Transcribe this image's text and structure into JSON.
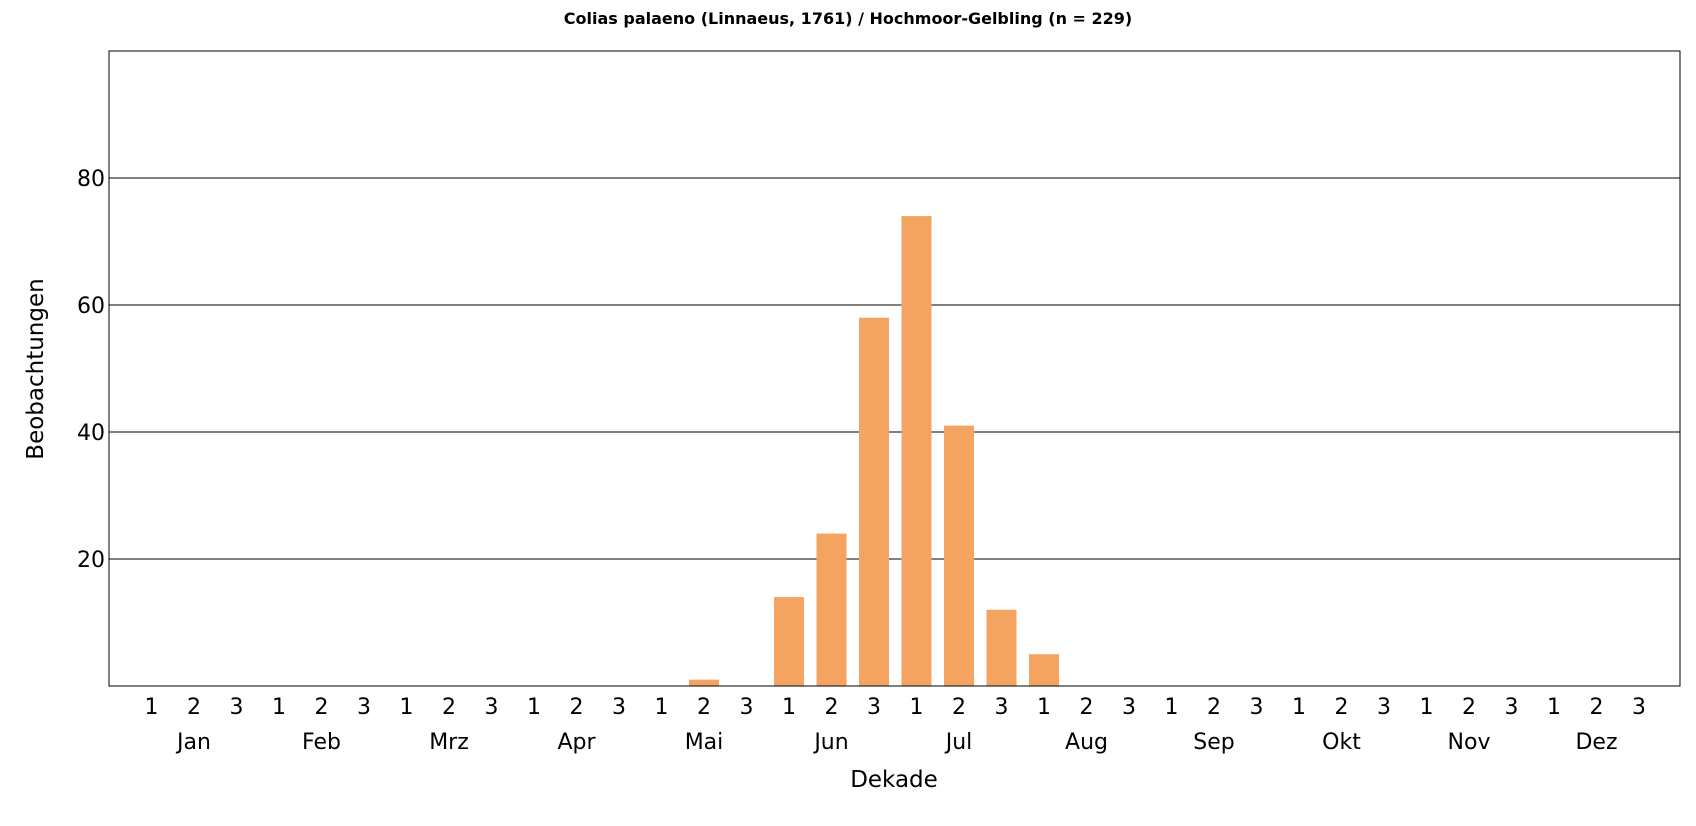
{
  "chart_data": {
    "type": "bar",
    "title": "Colias palaeno (Linnaeus, 1761) / Hochmoor-Gelbling (n = 229)",
    "xlabel": "Dekade",
    "ylabel": "Beobachtungen",
    "months": [
      "Jan",
      "Feb",
      "Mrz",
      "Apr",
      "Mai",
      "Jun",
      "Jul",
      "Aug",
      "Sep",
      "Okt",
      "Nov",
      "Dez"
    ],
    "decades": [
      "1",
      "2",
      "3"
    ],
    "values": [
      0,
      0,
      0,
      0,
      0,
      0,
      0,
      0,
      0,
      0,
      0,
      0,
      0,
      1,
      0,
      14,
      24,
      58,
      74,
      41,
      12,
      5,
      0,
      0,
      0,
      0,
      0,
      0,
      0,
      0,
      0,
      0,
      0,
      0,
      0,
      0
    ],
    "yticks": [
      "20",
      "40",
      "60",
      "80"
    ],
    "ylim": [
      0,
      100
    ],
    "grid": true,
    "bar_color": "#f4a460"
  }
}
